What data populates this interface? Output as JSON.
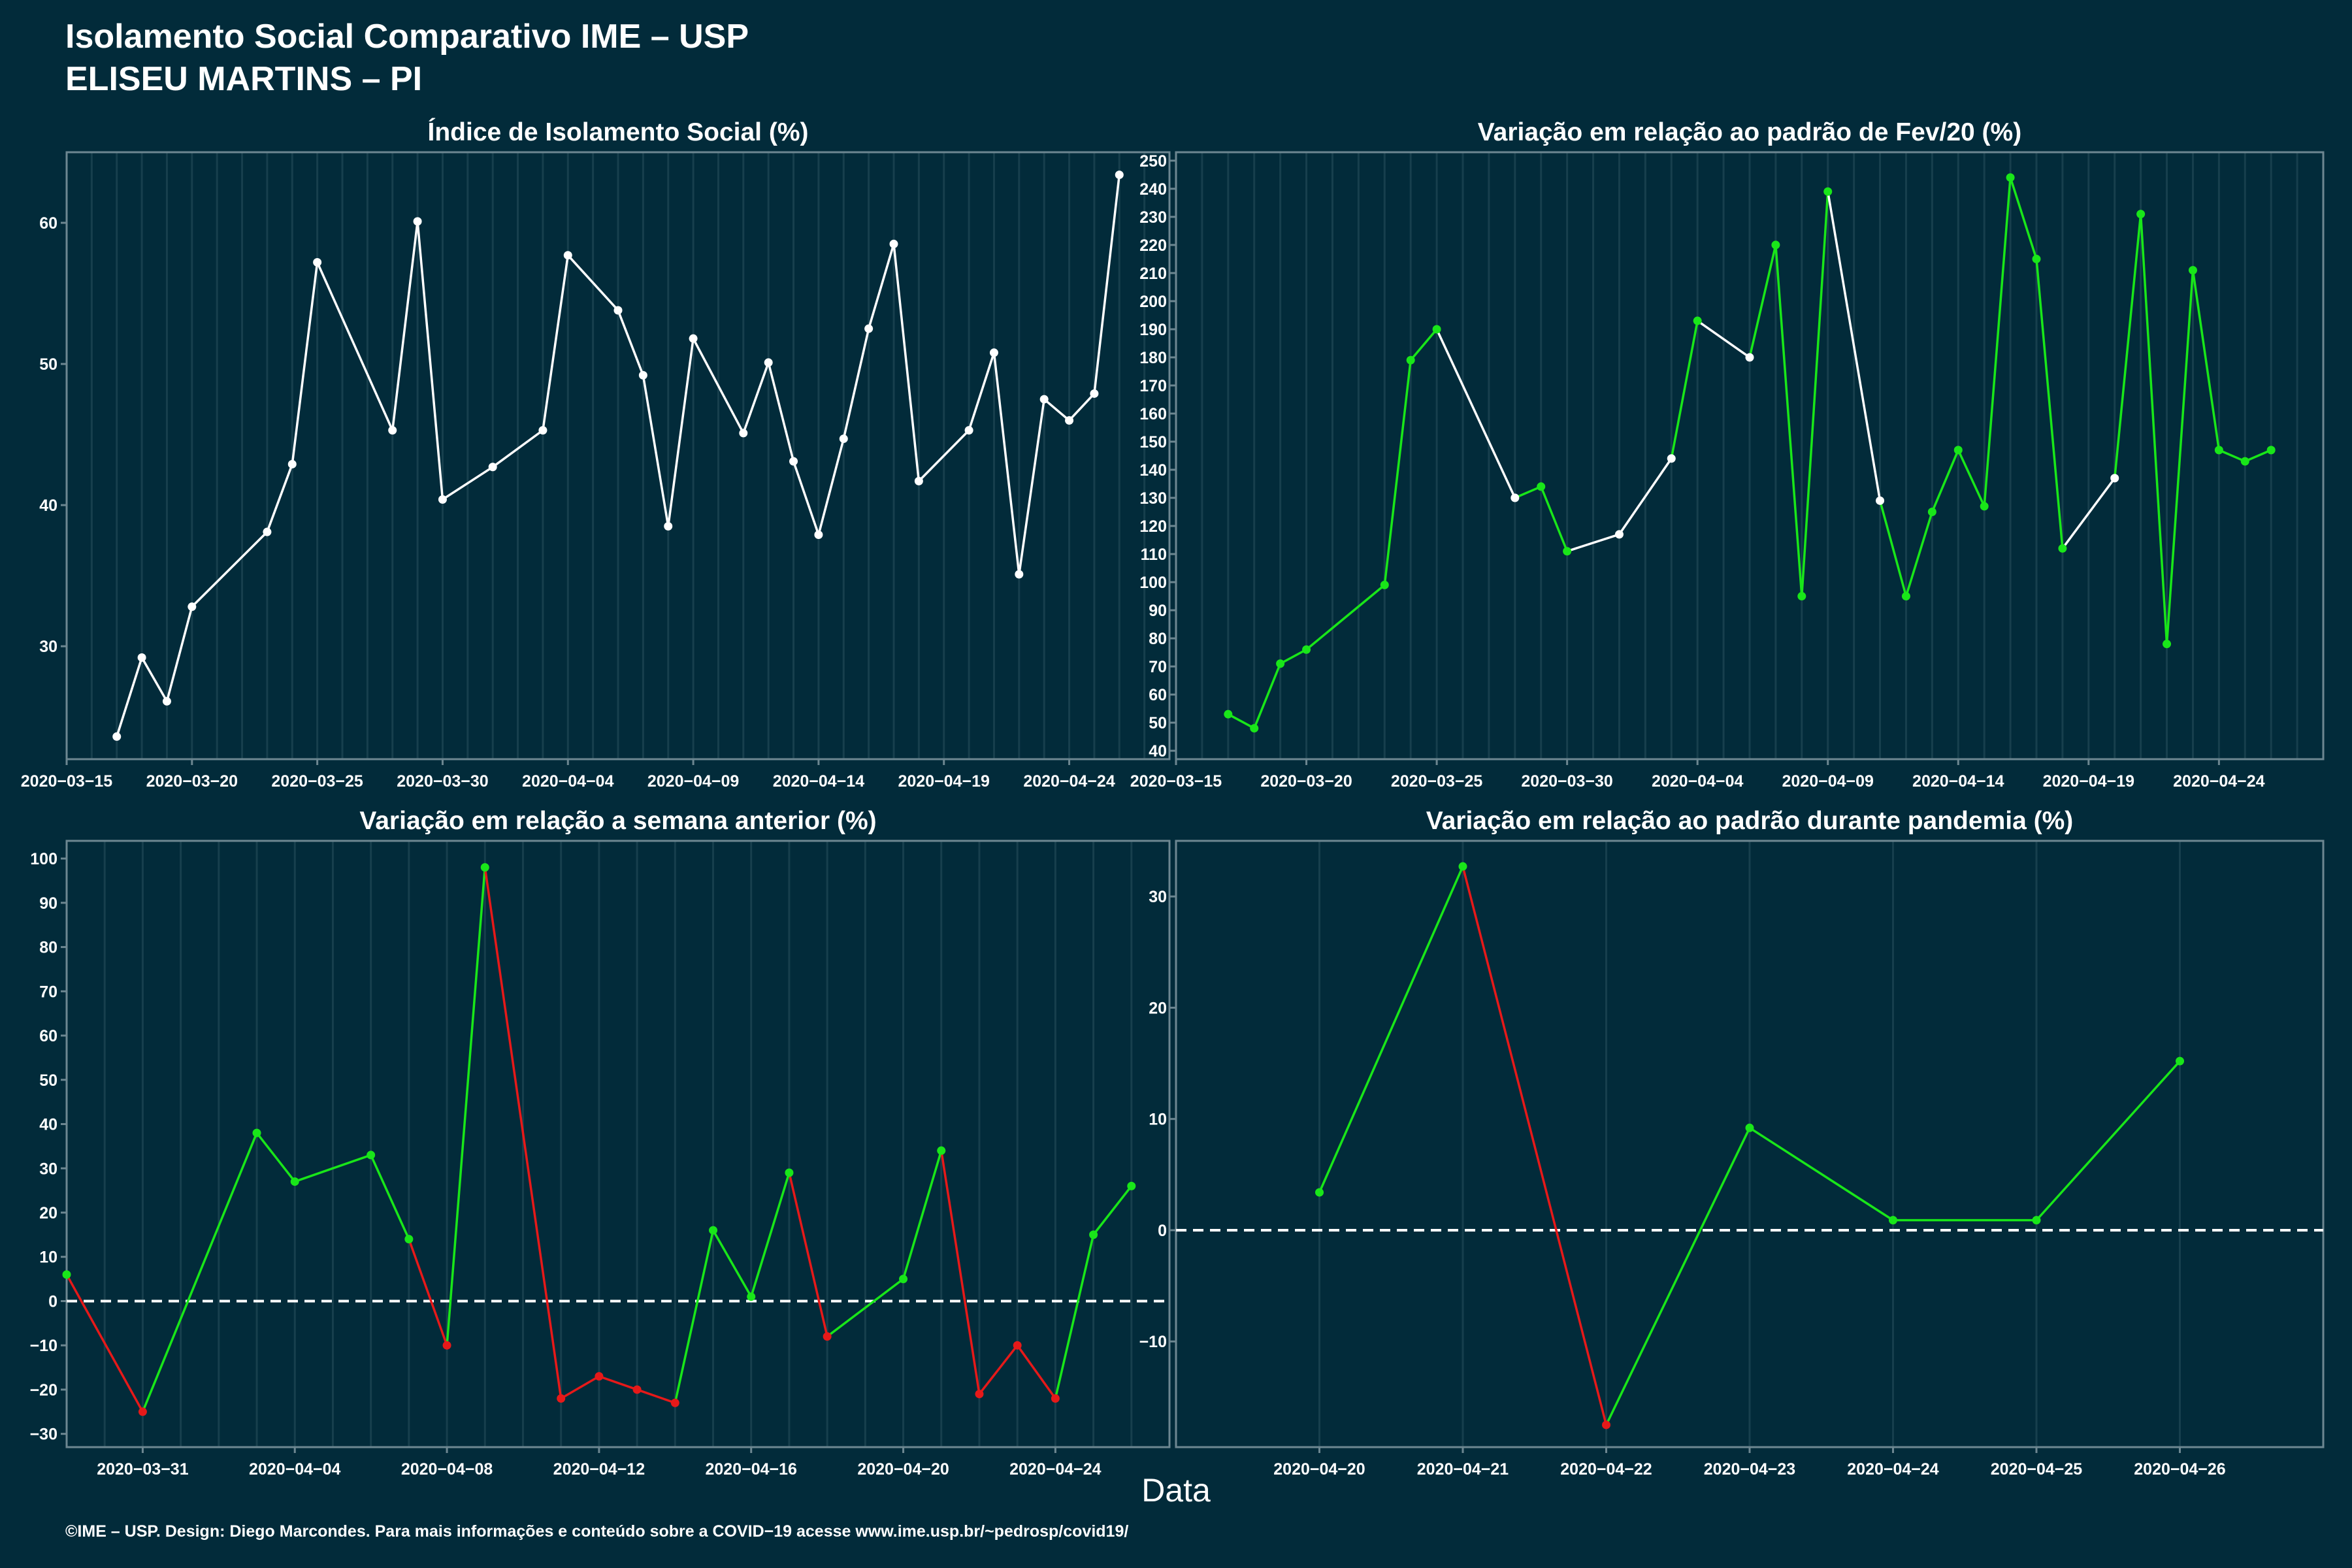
{
  "header": {
    "title_line1": "Isolamento Social Comparativo IME – USP",
    "title_line2": "ELISEU MARTINS – PI"
  },
  "x_axis_label": "Data",
  "footer": "©IME – USP. Design: Diego Marcondes. Para mais informações e conteúdo sobre a COVID−19 acesse www.ime.usp.br/~pedrosp/covid19/",
  "colors": {
    "background": "#022b3a",
    "grid": "#173f4d",
    "white": "#ffffff",
    "green": "#19e619",
    "red": "#e61919"
  },
  "chart_data": [
    {
      "type": "line",
      "title": "Índice de Isolamento Social (%)",
      "ylim": [
        22,
        65
      ],
      "yticks": [
        30,
        40,
        50,
        60
      ],
      "xlim": [
        "2020-03-15",
        "2020-04-28"
      ],
      "xticks": [
        "2020-03-15",
        "2020-03-20",
        "2020-03-25",
        "2020-03-30",
        "2020-04-04",
        "2020-04-09",
        "2020-04-14",
        "2020-04-19",
        "2020-04-24"
      ],
      "points": [
        [
          "2020-03-17",
          23.6,
          "white"
        ],
        [
          "2020-03-18",
          29.2,
          "white"
        ],
        [
          "2020-03-19",
          26.1,
          "white"
        ],
        [
          "2020-03-20",
          32.8,
          "white"
        ],
        [
          "2020-03-23",
          38.1,
          "white"
        ],
        [
          "2020-03-24",
          42.9,
          "white"
        ],
        [
          "2020-03-25",
          57.2,
          "white"
        ],
        [
          "2020-03-28",
          45.3,
          "white"
        ],
        [
          "2020-03-29",
          60.1,
          "white"
        ],
        [
          "2020-03-30",
          40.4,
          "white"
        ],
        [
          "2020-04-01",
          42.7,
          "white"
        ],
        [
          "2020-04-03",
          45.3,
          "white"
        ],
        [
          "2020-04-04",
          57.7,
          "white"
        ],
        [
          "2020-04-06",
          53.8,
          "white"
        ],
        [
          "2020-04-07",
          49.2,
          "white"
        ],
        [
          "2020-04-08",
          38.5,
          "white"
        ],
        [
          "2020-04-09",
          51.8,
          "white"
        ],
        [
          "2020-04-11",
          45.1,
          "white"
        ],
        [
          "2020-04-12",
          50.1,
          "white"
        ],
        [
          "2020-04-13",
          43.1,
          "white"
        ],
        [
          "2020-04-14",
          37.9,
          "white"
        ],
        [
          "2020-04-15",
          44.7,
          "white"
        ],
        [
          "2020-04-16",
          52.5,
          "white"
        ],
        [
          "2020-04-17",
          58.5,
          "white"
        ],
        [
          "2020-04-18",
          41.7,
          "white"
        ],
        [
          "2020-04-20",
          45.3,
          "white"
        ],
        [
          "2020-04-21",
          50.8,
          "white"
        ],
        [
          "2020-04-22",
          35.1,
          "white"
        ],
        [
          "2020-04-23",
          47.5,
          "white"
        ],
        [
          "2020-04-24",
          46.0,
          "white"
        ],
        [
          "2020-04-25",
          47.9,
          "white"
        ],
        [
          "2020-04-26",
          63.4,
          "white"
        ]
      ]
    },
    {
      "type": "line",
      "title": "Variação em relação ao padrão de Fev/20 (%)",
      "ylim": [
        37,
        253
      ],
      "yticks": [
        40,
        50,
        60,
        70,
        80,
        90,
        100,
        110,
        120,
        130,
        140,
        150,
        160,
        170,
        180,
        190,
        200,
        210,
        220,
        230,
        240,
        250
      ],
      "xlim": [
        "2020-03-15",
        "2020-04-28"
      ],
      "xticks": [
        "2020-03-15",
        "2020-03-20",
        "2020-03-25",
        "2020-03-30",
        "2020-04-04",
        "2020-04-09",
        "2020-04-14",
        "2020-04-19",
        "2020-04-24"
      ],
      "points": [
        [
          "2020-03-17",
          53,
          "green"
        ],
        [
          "2020-03-18",
          48,
          "green"
        ],
        [
          "2020-03-19",
          71,
          "green"
        ],
        [
          "2020-03-20",
          76,
          "green"
        ],
        [
          "2020-03-23",
          99,
          "green"
        ],
        [
          "2020-03-24",
          179,
          "green"
        ],
        [
          "2020-03-25",
          190,
          "green"
        ],
        [
          "2020-03-28",
          130,
          "white"
        ],
        [
          "2020-03-29",
          134,
          "green"
        ],
        [
          "2020-03-30",
          111,
          "green"
        ],
        [
          "2020-04-01",
          117,
          "white"
        ],
        [
          "2020-04-03",
          144,
          "white"
        ],
        [
          "2020-04-04",
          193,
          "green"
        ],
        [
          "2020-04-06",
          180,
          "white"
        ],
        [
          "2020-04-07",
          220,
          "green"
        ],
        [
          "2020-04-08",
          95,
          "green"
        ],
        [
          "2020-04-09",
          239,
          "green"
        ],
        [
          "2020-04-11",
          129,
          "white"
        ],
        [
          "2020-04-12",
          95,
          "green"
        ],
        [
          "2020-04-13",
          125,
          "green"
        ],
        [
          "2020-04-14",
          147,
          "green"
        ],
        [
          "2020-04-15",
          127,
          "green"
        ],
        [
          "2020-04-16",
          244,
          "green"
        ],
        [
          "2020-04-17",
          215,
          "green"
        ],
        [
          "2020-04-18",
          112,
          "green"
        ],
        [
          "2020-04-20",
          137,
          "white"
        ],
        [
          "2020-04-21",
          231,
          "green"
        ],
        [
          "2020-04-22",
          78,
          "green"
        ],
        [
          "2020-04-23",
          211,
          "green"
        ],
        [
          "2020-04-24",
          147,
          "green"
        ],
        [
          "2020-04-25",
          143,
          "green"
        ],
        [
          "2020-04-26",
          147,
          "green"
        ]
      ]
    },
    {
      "type": "line",
      "title": "Variação em relação a semana anterior (%)",
      "ylim": [
        -33,
        104
      ],
      "yticks": [
        -30,
        -20,
        -10,
        0,
        10,
        20,
        30,
        40,
        50,
        60,
        70,
        80,
        90,
        100
      ],
      "xlim": [
        "2020-03-29",
        "2020-04-27"
      ],
      "xticks": [
        "2020-03-31",
        "2020-04-04",
        "2020-04-08",
        "2020-04-12",
        "2020-04-16",
        "2020-04-20",
        "2020-04-24"
      ],
      "reference_line": 0,
      "points": [
        [
          "2020-03-29",
          6,
          "green"
        ],
        [
          "2020-03-31",
          -25,
          "red"
        ],
        [
          "2020-04-03",
          38,
          "green"
        ],
        [
          "2020-04-04",
          27,
          "green"
        ],
        [
          "2020-04-06",
          33,
          "green"
        ],
        [
          "2020-04-07",
          14,
          "green"
        ],
        [
          "2020-04-08",
          -10,
          "red"
        ],
        [
          "2020-04-09",
          98,
          "green"
        ],
        [
          "2020-04-11",
          -22,
          "red"
        ],
        [
          "2020-04-12",
          -17,
          "red"
        ],
        [
          "2020-04-13",
          -20,
          "red"
        ],
        [
          "2020-04-14",
          -23,
          "red"
        ],
        [
          "2020-04-15",
          16,
          "green"
        ],
        [
          "2020-04-16",
          1,
          "green"
        ],
        [
          "2020-04-17",
          29,
          "green"
        ],
        [
          "2020-04-18",
          -8,
          "red"
        ],
        [
          "2020-04-20",
          5,
          "green"
        ],
        [
          "2020-04-21",
          34,
          "green"
        ],
        [
          "2020-04-22",
          -21,
          "red"
        ],
        [
          "2020-04-23",
          -10,
          "red"
        ],
        [
          "2020-04-24",
          -22,
          "red"
        ],
        [
          "2020-04-25",
          15,
          "green"
        ],
        [
          "2020-04-26",
          26,
          "green"
        ]
      ]
    },
    {
      "type": "line",
      "title": "Variação em relação ao padrão durante pandemia (%)",
      "ylim": [
        -19.5,
        35
      ],
      "yticks": [
        -10,
        0,
        10,
        20,
        30
      ],
      "xlim": [
        "2020-04-19",
        "2020-04-27"
      ],
      "xticks": [
        "2020-04-20",
        "2020-04-21",
        "2020-04-22",
        "2020-04-23",
        "2020-04-24",
        "2020-04-25",
        "2020-04-26"
      ],
      "reference_line": 0,
      "points": [
        [
          "2020-04-20",
          3.4,
          "green"
        ],
        [
          "2020-04-21",
          32.7,
          "green"
        ],
        [
          "2020-04-22",
          -17.5,
          "red"
        ],
        [
          "2020-04-23",
          9.2,
          "green"
        ],
        [
          "2020-04-24",
          0.9,
          "green"
        ],
        [
          "2020-04-25",
          0.9,
          "green"
        ],
        [
          "2020-04-26",
          15.2,
          "green"
        ]
      ]
    }
  ]
}
